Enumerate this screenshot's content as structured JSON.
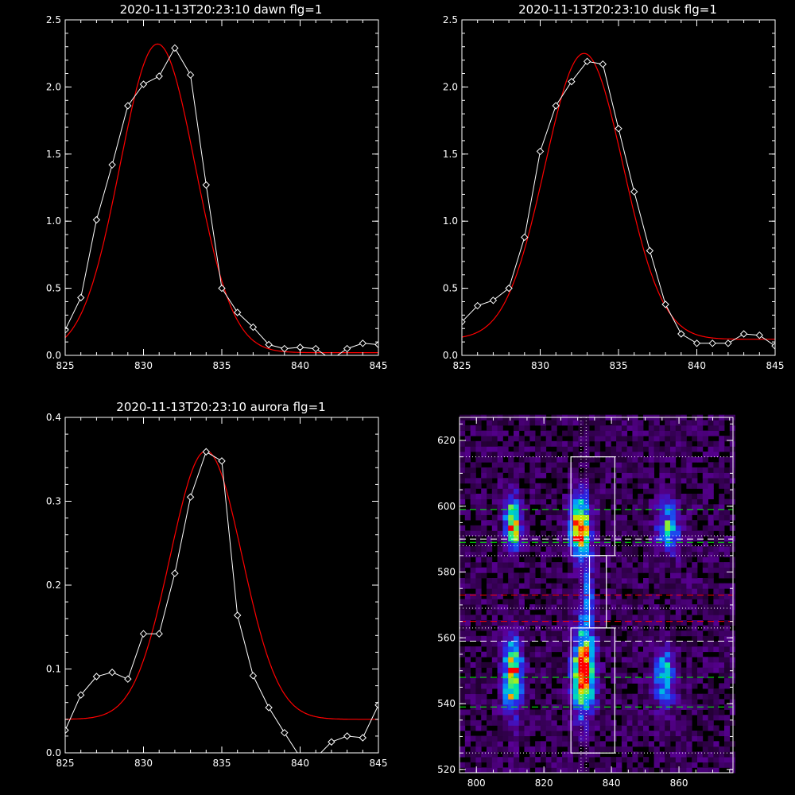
{
  "colors": {
    "background": "#000000",
    "axes": "#ffffff",
    "data": "#ffffff",
    "fit": "#ff0000"
  },
  "chart_data": [
    {
      "id": "dawn",
      "type": "line",
      "title": "2020-11-13T20:23:10 dawn flg=1",
      "xlim": [
        825,
        845
      ],
      "ylim": [
        0,
        2.5
      ],
      "xticks": [
        "825",
        "830",
        "835",
        "840",
        "845"
      ],
      "yticks": [
        "0.0",
        "0.5",
        "1.0",
        "1.5",
        "2.0",
        "2.5"
      ],
      "series": [
        {
          "kind": "data",
          "marker": "diamond",
          "x": [
            825,
            826,
            827,
            828,
            829,
            830,
            831,
            832,
            833,
            834,
            835,
            836,
            837,
            838,
            839,
            840,
            841,
            842,
            843,
            844,
            845
          ],
          "y": [
            0.19,
            0.43,
            1.01,
            1.42,
            1.86,
            2.02,
            2.08,
            2.29,
            2.09,
            1.27,
            0.5,
            0.32,
            0.21,
            0.08,
            0.05,
            0.06,
            0.05,
            -0.03,
            0.05,
            0.09,
            0.08
          ]
        },
        {
          "kind": "fit",
          "fn": "gauss",
          "center": 830.9,
          "sigma": 2.4,
          "amp": 2.3,
          "base": 0.02
        }
      ]
    },
    {
      "id": "dusk",
      "type": "line",
      "title": "2020-11-13T20:23:10 dusk flg=1",
      "xlim": [
        825,
        845
      ],
      "ylim": [
        0,
        2.5
      ],
      "xticks": [
        "825",
        "830",
        "835",
        "840",
        "845"
      ],
      "yticks": [
        "0.0",
        "0.5",
        "1.0",
        "1.5",
        "2.0",
        "2.5"
      ],
      "series": [
        {
          "kind": "data",
          "marker": "diamond",
          "x": [
            825,
            826,
            827,
            828,
            829,
            830,
            831,
            832,
            833,
            834,
            835,
            836,
            837,
            838,
            839,
            840,
            841,
            842,
            843,
            844,
            845
          ],
          "y": [
            0.25,
            0.37,
            0.41,
            0.5,
            0.88,
            1.52,
            1.86,
            2.04,
            2.19,
            2.17,
            1.69,
            1.22,
            0.78,
            0.38,
            0.16,
            0.09,
            0.09,
            0.09,
            0.16,
            0.15,
            0.07
          ]
        },
        {
          "kind": "fit",
          "fn": "gauss",
          "center": 832.8,
          "sigma": 2.5,
          "amp": 2.13,
          "base": 0.12
        }
      ]
    },
    {
      "id": "aurora",
      "type": "line",
      "title": "2020-11-13T20:23:10 aurora flg=1",
      "xlim": [
        825,
        845
      ],
      "ylim": [
        0,
        0.4
      ],
      "xticks": [
        "825",
        "830",
        "835",
        "840",
        "845"
      ],
      "yticks": [
        "0.0",
        "0.1",
        "0.2",
        "0.3",
        "0.4"
      ],
      "series": [
        {
          "kind": "data",
          "marker": "diamond",
          "x": [
            825,
            826,
            827,
            828,
            829,
            830,
            831,
            832,
            833,
            834,
            835,
            836,
            837,
            838,
            839,
            840,
            841,
            842,
            843,
            844,
            845
          ],
          "y": [
            0.027,
            0.069,
            0.091,
            0.096,
            0.088,
            0.142,
            0.142,
            0.214,
            0.305,
            0.359,
            0.348,
            0.164,
            0.092,
            0.054,
            0.024,
            -0.005,
            -0.006,
            0.013,
            0.02,
            0.018,
            0.057
          ]
        },
        {
          "kind": "fit",
          "fn": "gauss",
          "center": 834.0,
          "sigma": 2.3,
          "amp": 0.32,
          "base": 0.04
        }
      ]
    },
    {
      "id": "image",
      "type": "heatmap",
      "title": "",
      "xlim": [
        795,
        876
      ],
      "ylim": [
        519,
        627
      ],
      "xticks": [
        "800",
        "820",
        "840",
        "860"
      ],
      "yticks": [
        "520",
        "540",
        "560",
        "580",
        "600",
        "620"
      ],
      "blobs": [
        {
          "x": 810,
          "y": 594,
          "sx": 1.6,
          "sy": 5.5,
          "amp": 0.75
        },
        {
          "x": 830,
          "y": 593,
          "sx": 2.0,
          "sy": 6.0,
          "amp": 0.95
        },
        {
          "x": 856,
          "y": 593,
          "sx": 2.2,
          "sy": 5.5,
          "amp": 0.45
        },
        {
          "x": 810,
          "y": 548,
          "sx": 1.8,
          "sy": 7.5,
          "amp": 0.8
        },
        {
          "x": 831,
          "y": 549,
          "sx": 2.2,
          "sy": 8.5,
          "amp": 1.0
        },
        {
          "x": 855,
          "y": 547,
          "sx": 2.2,
          "sy": 6.0,
          "amp": 0.5
        },
        {
          "x": 832,
          "y": 572,
          "sx": 1.4,
          "sy": 8.0,
          "amp": 0.3
        }
      ],
      "boxes": [
        {
          "x0": 828,
          "x1": 841,
          "y0": 585,
          "y1": 615
        },
        {
          "x0": 833.5,
          "x1": 838.5,
          "y0": 563,
          "y1": 585
        },
        {
          "x0": 828,
          "x1": 841,
          "y0": 525,
          "y1": 563
        }
      ],
      "dotted_h": [
        615,
        591,
        588,
        585,
        569,
        563,
        525
      ],
      "dotted_v": [
        831,
        832.5
      ],
      "dashed_green": [
        599,
        589,
        548,
        539
      ],
      "dashed_white": [
        590,
        559
      ],
      "dashed_red": [
        573,
        565
      ]
    }
  ]
}
